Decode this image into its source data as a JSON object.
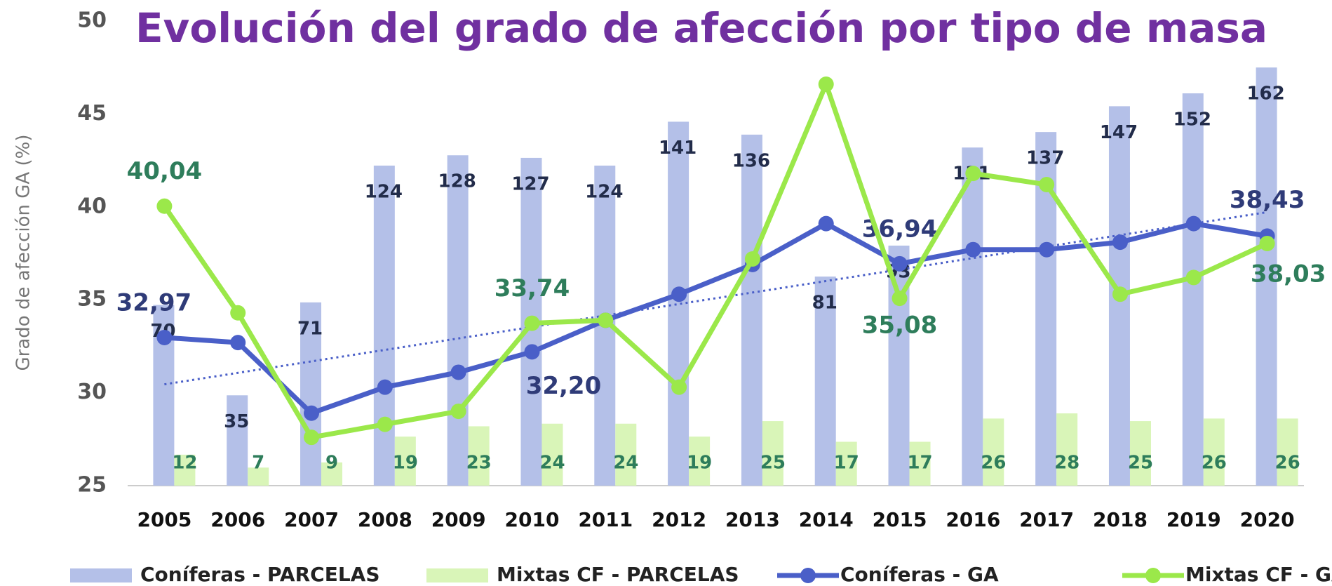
{
  "chart_data": {
    "type": "combo",
    "title": "Evolución del grado de afección por tipo de masa",
    "y_axis_label": "Grado de afección GA (%)",
    "categories": [
      "2005",
      "2006",
      "2007",
      "2008",
      "2009",
      "2010",
      "2011",
      "2012",
      "2013",
      "2014",
      "2015",
      "2016",
      "2017",
      "2018",
      "2019",
      "2020"
    ],
    "ylim": [
      25,
      50
    ],
    "yticks": [
      25,
      30,
      35,
      40,
      45,
      50
    ],
    "y2lim": [
      0,
      180
    ],
    "trendline": true,
    "series": [
      {
        "name": "Coníferas - PARCELAS",
        "kind": "bar",
        "axis": "y2",
        "color": "#b4c0e8",
        "values": [
          70,
          35,
          71,
          124,
          128,
          127,
          124,
          141,
          136,
          81,
          93,
          131,
          137,
          147,
          152,
          162
        ]
      },
      {
        "name": "Mixtas CF - PARCELAS",
        "kind": "bar",
        "axis": "y2",
        "color": "#d9f5b8",
        "values": [
          12,
          7,
          9,
          19,
          23,
          24,
          24,
          19,
          25,
          17,
          17,
          26,
          28,
          25,
          26,
          26
        ]
      },
      {
        "name": "Coníferas - GA",
        "kind": "line",
        "color": "#4a5fc8",
        "values": [
          32.97,
          32.7,
          28.9,
          30.3,
          31.1,
          32.2,
          33.9,
          35.3,
          36.9,
          39.1,
          36.94,
          37.7,
          37.7,
          38.1,
          39.1,
          38.43
        ],
        "value_labels": [
          "32,97",
          null,
          null,
          null,
          null,
          "32,20",
          null,
          null,
          null,
          null,
          "36,94",
          null,
          null,
          null,
          null,
          "38,43"
        ]
      },
      {
        "name": "Mixtas CF - GA",
        "kind": "line",
        "color": "#9be84a",
        "values": [
          40.04,
          34.3,
          27.6,
          28.3,
          29.0,
          33.74,
          33.9,
          30.3,
          37.2,
          46.6,
          35.08,
          41.8,
          41.2,
          35.3,
          36.2,
          38.03
        ],
        "value_labels": [
          "40,04",
          null,
          null,
          null,
          null,
          "33,74",
          null,
          null,
          null,
          null,
          "35,08",
          null,
          null,
          null,
          null,
          "38,03"
        ]
      }
    ]
  }
}
